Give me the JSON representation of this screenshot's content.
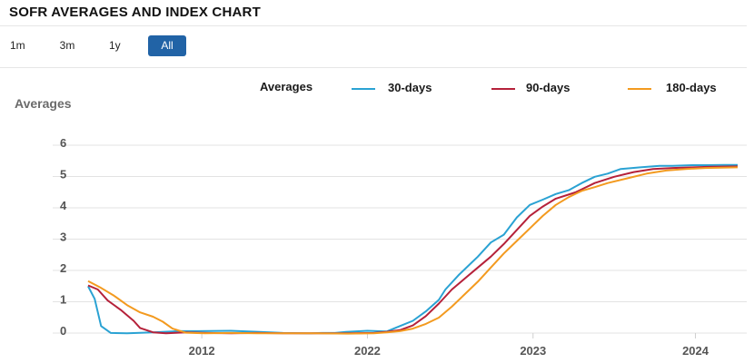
{
  "title": "SOFR AVERAGES AND INDEX CHART",
  "ranges": [
    "1m",
    "3m",
    "1y",
    "All"
  ],
  "active_range": "All",
  "legend": {
    "title": "Averages",
    "items": [
      {
        "label": "30-days",
        "color": "#2aa2d3"
      },
      {
        "label": "90-days",
        "color": "#b5213a"
      },
      {
        "label": "180-days",
        "color": "#f39a1f"
      }
    ]
  },
  "chart_data": {
    "type": "line",
    "ylabel": "Averages",
    "ylim": [
      0,
      6
    ],
    "yticks": [
      "0",
      "1",
      "2",
      "3",
      "4",
      "5",
      "6"
    ],
    "xticks": [
      "2012",
      "2022",
      "2023",
      "2024"
    ],
    "grid": true,
    "series": [
      {
        "name": "30-days",
        "color": "#2aa2d3",
        "points": [
          [
            0,
            1.55
          ],
          [
            0.1,
            1.15
          ],
          [
            0.2,
            0.28
          ],
          [
            0.35,
            0.06
          ],
          [
            0.6,
            0.05
          ],
          [
            1.0,
            0.08
          ],
          [
            1.4,
            0.12
          ],
          [
            1.7,
            0.12
          ],
          [
            2.2,
            0.13
          ],
          [
            2.6,
            0.1
          ],
          [
            3.0,
            0.06
          ],
          [
            3.4,
            0.05
          ],
          [
            3.6,
            0.06
          ],
          [
            3.8,
            0.06
          ],
          [
            4.0,
            0.1
          ],
          [
            4.3,
            0.13
          ],
          [
            4.6,
            0.11
          ],
          [
            4.8,
            0.28
          ],
          [
            5.0,
            0.45
          ],
          [
            5.2,
            0.75
          ],
          [
            5.4,
            1.12
          ],
          [
            5.5,
            1.45
          ],
          [
            5.7,
            1.9
          ],
          [
            5.9,
            2.3
          ],
          [
            6.0,
            2.5
          ],
          [
            6.2,
            2.95
          ],
          [
            6.4,
            3.2
          ],
          [
            6.6,
            3.75
          ],
          [
            6.8,
            4.15
          ],
          [
            7.0,
            4.32
          ],
          [
            7.2,
            4.5
          ],
          [
            7.4,
            4.62
          ],
          [
            7.6,
            4.85
          ],
          [
            7.8,
            5.05
          ],
          [
            8.0,
            5.15
          ],
          [
            8.2,
            5.3
          ],
          [
            8.5,
            5.35
          ],
          [
            8.8,
            5.4
          ],
          [
            9.0,
            5.4
          ],
          [
            9.3,
            5.42
          ],
          [
            9.5,
            5.42
          ],
          [
            9.8,
            5.43
          ],
          [
            10.0,
            5.43
          ]
        ]
      },
      {
        "name": "90-days",
        "color": "#b5213a",
        "points": [
          [
            0,
            1.58
          ],
          [
            0.15,
            1.45
          ],
          [
            0.3,
            1.1
          ],
          [
            0.5,
            0.8
          ],
          [
            0.7,
            0.45
          ],
          [
            0.8,
            0.22
          ],
          [
            1.0,
            0.08
          ],
          [
            1.2,
            0.05
          ],
          [
            1.5,
            0.08
          ],
          [
            1.8,
            0.06
          ],
          [
            2.2,
            0.05
          ],
          [
            2.6,
            0.06
          ],
          [
            3.0,
            0.05
          ],
          [
            3.5,
            0.05
          ],
          [
            4.0,
            0.05
          ],
          [
            4.4,
            0.06
          ],
          [
            4.6,
            0.1
          ],
          [
            4.8,
            0.15
          ],
          [
            5.0,
            0.3
          ],
          [
            5.2,
            0.6
          ],
          [
            5.4,
            1.0
          ],
          [
            5.6,
            1.45
          ],
          [
            5.8,
            1.8
          ],
          [
            6.0,
            2.15
          ],
          [
            6.2,
            2.5
          ],
          [
            6.4,
            2.9
          ],
          [
            6.6,
            3.35
          ],
          [
            6.8,
            3.8
          ],
          [
            7.0,
            4.1
          ],
          [
            7.2,
            4.35
          ],
          [
            7.5,
            4.55
          ],
          [
            7.8,
            4.85
          ],
          [
            8.1,
            5.05
          ],
          [
            8.4,
            5.2
          ],
          [
            8.7,
            5.3
          ],
          [
            9.0,
            5.33
          ],
          [
            9.3,
            5.35
          ],
          [
            9.6,
            5.37
          ],
          [
            10.0,
            5.38
          ]
        ]
      },
      {
        "name": "180-days",
        "color": "#f39a1f",
        "points": [
          [
            0,
            1.72
          ],
          [
            0.2,
            1.5
          ],
          [
            0.4,
            1.25
          ],
          [
            0.6,
            0.95
          ],
          [
            0.8,
            0.72
          ],
          [
            1.0,
            0.58
          ],
          [
            1.15,
            0.42
          ],
          [
            1.3,
            0.2
          ],
          [
            1.5,
            0.07
          ],
          [
            1.8,
            0.05
          ],
          [
            2.2,
            0.06
          ],
          [
            2.6,
            0.05
          ],
          [
            3.0,
            0.05
          ],
          [
            3.5,
            0.05
          ],
          [
            4.0,
            0.04
          ],
          [
            4.4,
            0.05
          ],
          [
            4.6,
            0.08
          ],
          [
            4.8,
            0.12
          ],
          [
            5.0,
            0.2
          ],
          [
            5.2,
            0.35
          ],
          [
            5.4,
            0.55
          ],
          [
            5.6,
            0.9
          ],
          [
            5.8,
            1.3
          ],
          [
            6.0,
            1.7
          ],
          [
            6.2,
            2.15
          ],
          [
            6.4,
            2.6
          ],
          [
            6.6,
            3.0
          ],
          [
            6.8,
            3.4
          ],
          [
            7.0,
            3.8
          ],
          [
            7.2,
            4.15
          ],
          [
            7.4,
            4.4
          ],
          [
            7.6,
            4.6
          ],
          [
            7.8,
            4.72
          ],
          [
            8.0,
            4.85
          ],
          [
            8.3,
            5.0
          ],
          [
            8.6,
            5.15
          ],
          [
            8.9,
            5.25
          ],
          [
            9.2,
            5.3
          ],
          [
            9.5,
            5.33
          ],
          [
            10.0,
            5.35
          ]
        ]
      }
    ],
    "xtick_positions": [
      1.75,
      4.3,
      6.85,
      9.35
    ],
    "xlim": [
      0,
      10
    ]
  }
}
